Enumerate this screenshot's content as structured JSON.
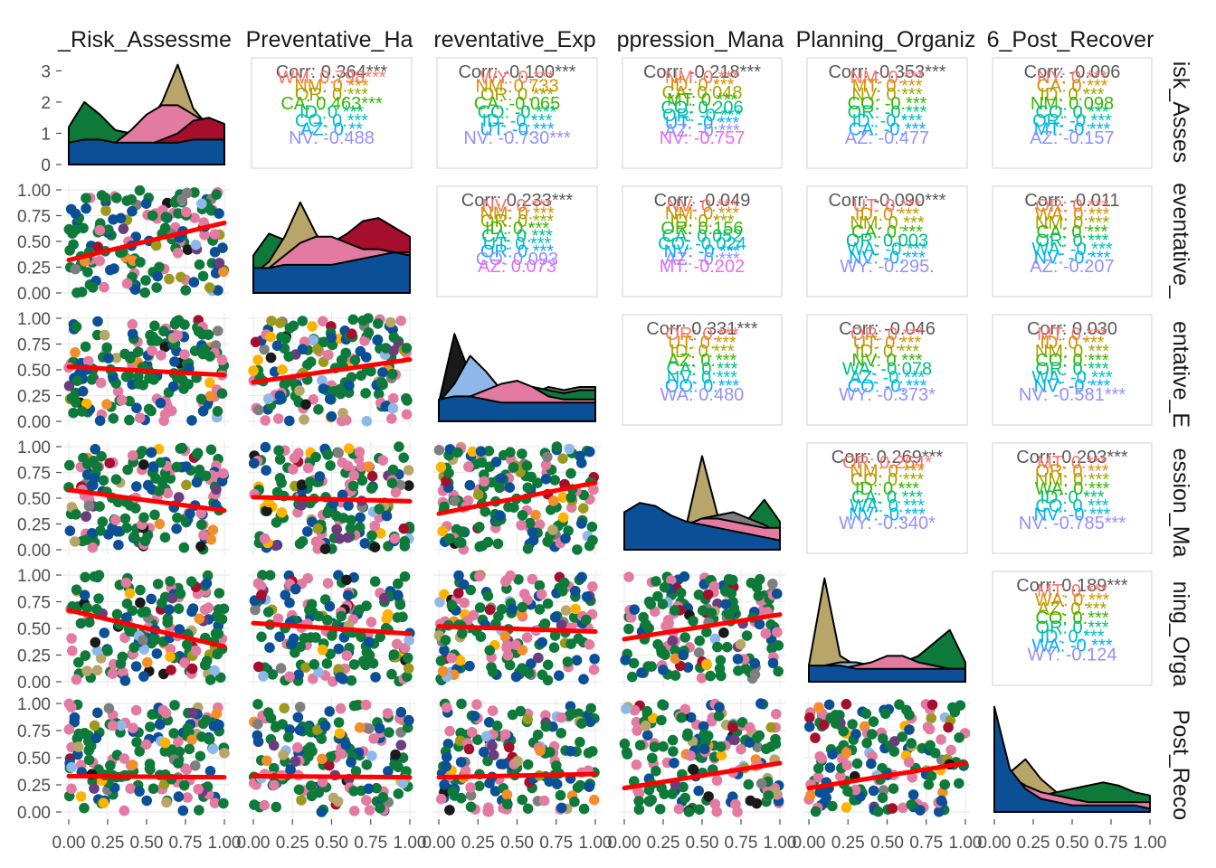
{
  "variables": [
    {
      "col_label": "_Risk_Assessme",
      "row_label": "isk_Asses"
    },
    {
      "col_label": "Preventative_Ha",
      "row_label": "eventative_"
    },
    {
      "col_label": "reventative_Exp",
      "row_label": "entative_E"
    },
    {
      "col_label": "ppression_Mana",
      "row_label": "ession_Ma"
    },
    {
      "col_label": "Planning_Organiz",
      "row_label": "ning_Orga"
    },
    {
      "col_label": "6_Post_Recover",
      "row_label": "Post_Reco"
    }
  ],
  "chart_data": {
    "type": "scatter",
    "title": "",
    "xlim": [
      0,
      1
    ],
    "x_ticks": [
      "0.00",
      "0.25",
      "0.50",
      "0.75",
      "1.00"
    ],
    "y_ticks_scatter": [
      "0.00",
      "0.25",
      "0.50",
      "0.75",
      "1.00"
    ],
    "density_panel_ylim": [
      0,
      3.3
    ],
    "density_panel_y_ticks": [
      "0",
      "1",
      "2",
      "3"
    ],
    "trend_color": "#ff0000",
    "group_colors": [
      "#f28e2b",
      "#b8a56a",
      "#9c9a1e",
      "#0e7a3a",
      "#ffb300",
      "#a50f2d",
      "#6a3d7e",
      "#8fb8e8",
      "#e27aa1",
      "#7f7f7f",
      "#0b4f96",
      "#1a1a1a"
    ],
    "corr_label_colors": [
      "#f8766d",
      "#d89000",
      "#a3a500",
      "#39b600",
      "#00bf7d",
      "#00bfc4",
      "#00b0f6",
      "#9590ff",
      "#e76bf3",
      "#ff62bc"
    ],
    "trend_lines": [
      {
        "row": 1,
        "col": 0,
        "y0": 0.32,
        "y1": 0.68
      },
      {
        "row": 2,
        "col": 0,
        "y0": 0.53,
        "y1": 0.45
      },
      {
        "row": 2,
        "col": 1,
        "y0": 0.38,
        "y1": 0.6
      },
      {
        "row": 3,
        "col": 0,
        "y0": 0.58,
        "y1": 0.38
      },
      {
        "row": 3,
        "col": 1,
        "y0": 0.51,
        "y1": 0.47
      },
      {
        "row": 3,
        "col": 2,
        "y0": 0.35,
        "y1": 0.65
      },
      {
        "row": 4,
        "col": 0,
        "y0": 0.67,
        "y1": 0.33
      },
      {
        "row": 4,
        "col": 1,
        "y0": 0.55,
        "y1": 0.45
      },
      {
        "row": 4,
        "col": 2,
        "y0": 0.52,
        "y1": 0.47
      },
      {
        "row": 4,
        "col": 3,
        "y0": 0.4,
        "y1": 0.63
      },
      {
        "row": 5,
        "col": 0,
        "y0": 0.33,
        "y1": 0.32
      },
      {
        "row": 5,
        "col": 1,
        "y0": 0.33,
        "y1": 0.32
      },
      {
        "row": 5,
        "col": 2,
        "y0": 0.32,
        "y1": 0.35
      },
      {
        "row": 5,
        "col": 3,
        "y0": 0.22,
        "y1": 0.45
      },
      {
        "row": 5,
        "col": 4,
        "y0": 0.22,
        "y1": 0.45
      }
    ],
    "correlations": [
      {
        "row": 0,
        "col": 1,
        "header": "Corr: 0.364***",
        "groups": [
          "WM: 0.798***",
          "NM: 0.***",
          "OR: 0.***",
          "CA: 0.463***",
          "ID: 0.***",
          "CO: 0.***",
          "AZ: 0.**",
          "NV: -0.488"
        ]
      },
      {
        "row": 0,
        "col": 2,
        "header": "Corr: -0.100***",
        "groups": [
          "WY: 0.***",
          "NM: 0.733",
          "OR: 0.***",
          "CA: -0.065",
          "CO: -0.***",
          "ID: -0.***",
          "UT: -0.***",
          "NV: -0.730***"
        ]
      },
      {
        "row": 0,
        "col": 3,
        "header": "Corr: -0.218***",
        "groups": [
          "NM: 0.***",
          "ID: 0.***",
          "CA: 0.048",
          "MT: 0.***",
          "CO: 0.206",
          "OR: -0.***",
          "UT: -0.***",
          "AZ: -0.***",
          "NV: -0.757"
        ]
      },
      {
        "row": 0,
        "col": 4,
        "header": "Corr: -0.353***",
        "groups": [
          "NM: 0.***",
          "MT: 0.***",
          "NV: 0.***",
          "CO: -0.***",
          "OR: -0.***",
          "ID: -0.***",
          "CA: -0.***",
          "AZ: -0.477"
        ]
      },
      {
        "row": 0,
        "col": 5,
        "header": "Corr: -0.006",
        "groups": [
          "NY: 0.***",
          "CA: 0.***",
          "ID: 0.***",
          "NM: 0.098",
          "CO: 0.***",
          "OR: -0.***",
          "MT: -0.***",
          "AZ: -0.157"
        ]
      },
      {
        "row": 1,
        "col": 2,
        "header": "Corr: 0.233***",
        "groups": [
          "NV: 0.***",
          "NM: 0.***",
          "OR: 0.***",
          "ID: 0.***",
          "CA: 0.***",
          "UT: 0.***",
          "OR: 0.***",
          "CO: 0.093",
          "AZ: 0.073"
        ]
      },
      {
        "row": 1,
        "col": 3,
        "header": "Corr: -0.049",
        "groups": [
          "NV: 0.***",
          "NM: 0.***",
          "ID: 0.***",
          "OR: 0.156",
          "CA: 0.052",
          "CO: -0.024",
          "NV: -0.***",
          "AZ: -0.***",
          "MT: -0.202"
        ]
      },
      {
        "row": 1,
        "col": 4,
        "header": "Corr: -0.090***",
        "groups": [
          "UT: 0.***",
          "ID: 0.***",
          "NM: 0.***",
          "CA: 0.***",
          "OR: 0.003",
          "WA: -0.***",
          "NV: -0.***",
          "WY: -0.295."
        ]
      },
      {
        "row": 1,
        "col": 5,
        "header": "Corr: -0.011",
        "groups": [
          "OR: 0.***",
          "WA: 0.***",
          "NM: 0.***",
          "CA: 0.***",
          "OR: 0.***",
          "WA: -0.***",
          "NV: -0.***",
          "AZ: -0.207"
        ]
      },
      {
        "row": 2,
        "col": 3,
        "header": "Corr: 0.331***",
        "groups": [
          "OR: 0.***",
          "UT: 0.***",
          "ID: 0.***",
          "AZ: 0.***",
          "CA: 0.***",
          "NV: 0.***",
          "OO: 0.***",
          "WA: 0.480"
        ]
      },
      {
        "row": 2,
        "col": 4,
        "header": "Corr: -0.046",
        "groups": [
          "OR: 0.***",
          "UT: 0.***",
          "ID: 0.***",
          "NV: 0.***",
          "WA: -0.078",
          "AZ: -0.***",
          "CO: -0.***",
          "WY: -0.373*"
        ]
      },
      {
        "row": 2,
        "col": 5,
        "header": "Corr: 0.030",
        "groups": [
          "MT: 0.***",
          "ID: 0.***",
          "NM: 0.***",
          "CO: 0.***",
          "OR: 0.***",
          "WA: -0.***",
          "NV: -0.***",
          "NV: -0.581***"
        ]
      },
      {
        "row": 3,
        "col": 4,
        "header": "Corr: 0.269***",
        "groups": [
          "OR: 0.264*",
          "NM: 0.***",
          "CO: 0.***",
          "ID: 0.***",
          "CA: 0.***",
          "WA: 0.***",
          "NV: -0.***",
          "WY: -0.340*"
        ]
      },
      {
        "row": 3,
        "col": 5,
        "header": "Corr: 0.203***",
        "groups": [
          "MT: 0.***",
          "OR: 0.***",
          "NM: 0.***",
          "WA: 0.***",
          "ID: 0.***",
          "CO: 0.***",
          "NV: -0.***",
          "NV: -0.785***"
        ]
      },
      {
        "row": 4,
        "col": 5,
        "header": "Corr: 0.189***",
        "groups": [
          "MT: 0.***",
          "WA: 0.***",
          "AZ: 0.***",
          "CO: 0.***",
          "OR: 0.***",
          "ID: 0.***",
          "WA: -0.***",
          "WY: -0.124"
        ]
      }
    ],
    "densities": [
      {
        "row": 0,
        "layers": [
          {
            "color": "#0e7a3a",
            "values": [
              1.2,
              2.0,
              1.6,
              1.1,
              1.0,
              1.0,
              1.1,
              1.2,
              1.2,
              1.1,
              1.1
            ]
          },
          {
            "color": "#b8a56a",
            "values": [
              0.4,
              0.5,
              0.5,
              0.6,
              0.8,
              1.2,
              2.0,
              3.2,
              1.8,
              1.2,
              1.0
            ]
          },
          {
            "color": "#e27aa1",
            "values": [
              0.3,
              0.4,
              0.5,
              0.7,
              1.1,
              1.6,
              1.9,
              1.9,
              1.6,
              1.3,
              1.2
            ]
          },
          {
            "color": "#a50f2d",
            "values": [
              0.5,
              0.5,
              0.5,
              0.5,
              0.5,
              0.6,
              0.8,
              1.0,
              1.4,
              1.5,
              1.3
            ]
          },
          {
            "color": "#0b4f96",
            "values": [
              0.7,
              0.8,
              0.8,
              0.7,
              0.7,
              0.7,
              0.7,
              0.7,
              0.8,
              0.8,
              0.8
            ]
          }
        ]
      },
      {
        "row": 1,
        "layers": [
          {
            "color": "#8fb8e8",
            "values": [
              0.9,
              1.3,
              1.6,
              1.6,
              1.4,
              1.3,
              1.3,
              1.3,
              1.3,
              1.2,
              1.1
            ]
          },
          {
            "color": "#0e7a3a",
            "values": [
              1.2,
              1.9,
              1.7,
              1.6,
              1.5,
              1.2,
              1.0,
              1.0,
              1.0,
              1.0,
              1.0
            ]
          },
          {
            "color": "#b8a56a",
            "values": [
              0.6,
              1.0,
              1.8,
              2.9,
              1.9,
              1.1,
              0.9,
              0.9,
              0.8,
              0.8,
              0.8
            ]
          },
          {
            "color": "#a50f2d",
            "values": [
              0.4,
              0.4,
              0.5,
              0.8,
              1.2,
              1.6,
              1.9,
              2.3,
              2.4,
              2.1,
              1.8
            ]
          },
          {
            "color": "#e27aa1",
            "values": [
              0.5,
              0.8,
              1.2,
              1.6,
              1.8,
              1.8,
              1.6,
              1.4,
              1.4,
              1.3,
              1.3
            ]
          },
          {
            "color": "#0b4f96",
            "values": [
              0.8,
              0.8,
              0.9,
              0.9,
              0.9,
              0.9,
              1.0,
              1.1,
              1.2,
              1.3,
              1.2
            ]
          }
        ]
      },
      {
        "row": 2,
        "layers": [
          {
            "color": "#1a1a1a",
            "values": [
              0.6,
              2.8,
              1.5,
              0.8,
              0.6,
              0.6,
              0.6,
              0.6,
              0.7,
              0.7,
              0.6
            ]
          },
          {
            "color": "#8fb8e8",
            "values": [
              0.6,
              1.2,
              2.1,
              1.6,
              1.0,
              0.8,
              0.7,
              0.6,
              0.6,
              0.5,
              0.5
            ]
          },
          {
            "color": "#7f7f7f",
            "values": [
              0.3,
              0.4,
              0.5,
              0.6,
              0.7,
              0.8,
              0.9,
              1.1,
              1.0,
              1.1,
              1.1
            ]
          },
          {
            "color": "#0e7a3a",
            "values": [
              0.3,
              0.4,
              0.5,
              0.6,
              0.8,
              1.0,
              1.1,
              1.0,
              0.9,
              1.0,
              1.0
            ]
          },
          {
            "color": "#e27aa1",
            "values": [
              0.4,
              0.6,
              0.8,
              1.0,
              1.2,
              1.3,
              1.1,
              0.8,
              0.7,
              0.7,
              0.7
            ]
          },
          {
            "color": "#0b4f96",
            "values": [
              0.7,
              0.8,
              0.8,
              0.7,
              0.6,
              0.6,
              0.6,
              0.6,
              0.6,
              0.6,
              0.6
            ]
          }
        ]
      },
      {
        "row": 3,
        "layers": [
          {
            "color": "#b8a56a",
            "values": [
              0.2,
              0.3,
              0.4,
              0.5,
              0.8,
              3.0,
              1.1,
              0.8,
              0.7,
              0.6,
              0.5
            ]
          },
          {
            "color": "#0e7a3a",
            "values": [
              0.3,
              0.4,
              0.5,
              0.6,
              0.8,
              1.0,
              1.1,
              1.2,
              1.0,
              1.6,
              0.9
            ]
          },
          {
            "color": "#7f7f7f",
            "values": [
              0.2,
              0.3,
              0.5,
              0.6,
              0.8,
              1.0,
              1.1,
              1.2,
              1.0,
              0.8,
              0.5
            ]
          },
          {
            "color": "#e27aa1",
            "values": [
              0.3,
              0.5,
              0.6,
              0.7,
              0.8,
              1.0,
              1.0,
              0.9,
              0.8,
              0.7,
              0.7
            ]
          },
          {
            "color": "#0b4f96",
            "values": [
              1.2,
              1.5,
              1.4,
              1.1,
              0.9,
              0.8,
              0.7,
              0.6,
              0.5,
              0.4,
              0.3
            ]
          }
        ]
      },
      {
        "row": 4,
        "layers": [
          {
            "color": "#b8a56a",
            "values": [
              0.5,
              3.2,
              0.8,
              0.5,
              0.4,
              0.4,
              0.4,
              0.4,
              0.4,
              0.4,
              0.4
            ]
          },
          {
            "color": "#8fb8e8",
            "values": [
              0.3,
              0.5,
              0.6,
              0.6,
              0.5,
              0.5,
              0.5,
              0.5,
              0.5,
              0.5,
              0.5
            ]
          },
          {
            "color": "#0e7a3a",
            "values": [
              0.2,
              0.2,
              0.3,
              0.3,
              0.4,
              0.5,
              0.6,
              0.8,
              1.2,
              1.6,
              0.6
            ]
          },
          {
            "color": "#e27aa1",
            "values": [
              0.3,
              0.3,
              0.4,
              0.5,
              0.6,
              0.8,
              0.8,
              0.6,
              0.5,
              0.4,
              0.4
            ]
          },
          {
            "color": "#0b4f96",
            "values": [
              0.5,
              0.5,
              0.5,
              0.4,
              0.4,
              0.4,
              0.4,
              0.4,
              0.4,
              0.4,
              0.4
            ]
          }
        ]
      },
      {
        "row": 5,
        "layers": [
          {
            "color": "#b8a56a",
            "values": [
              0.6,
              1.2,
              1.6,
              1.0,
              0.6,
              0.4,
              0.4,
              0.4,
              0.3,
              0.3,
              0.3
            ]
          },
          {
            "color": "#0e7a3a",
            "values": [
              0.2,
              0.3,
              0.4,
              0.5,
              0.6,
              0.7,
              0.8,
              0.9,
              0.8,
              0.6,
              0.5
            ]
          },
          {
            "color": "#e27aa1",
            "values": [
              1.0,
              1.1,
              0.8,
              0.6,
              0.5,
              0.4,
              0.3,
              0.3,
              0.3,
              0.3,
              0.3
            ]
          },
          {
            "color": "#0b4f96",
            "values": [
              3.2,
              1.3,
              0.7,
              0.4,
              0.3,
              0.2,
              0.2,
              0.2,
              0.2,
              0.2,
              0.1
            ]
          }
        ]
      }
    ]
  }
}
